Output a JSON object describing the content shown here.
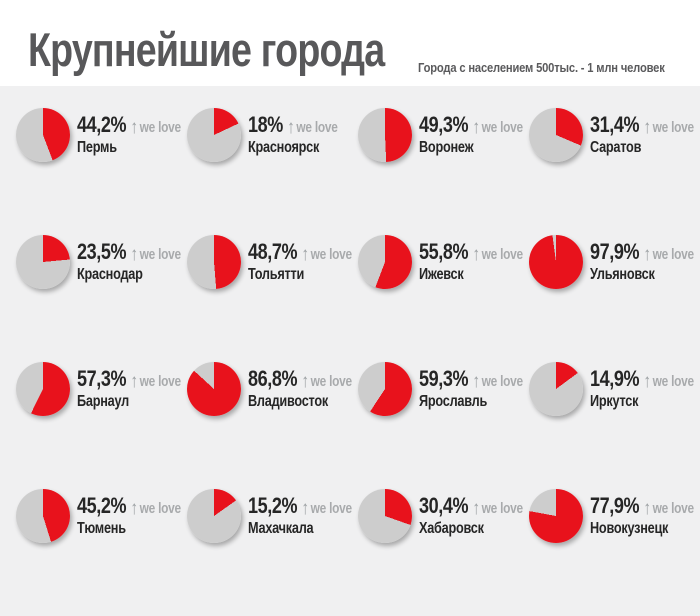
{
  "header": {
    "title": "Крупнейшие города",
    "subtitle": "Города с населением 500тыс. - 1 млн человек"
  },
  "colors": {
    "slice": "#e8121c",
    "remainder": "#cdcdcd",
    "background": "#f0f0f1",
    "header_background": "#ffffff",
    "title_text": "#58585a",
    "value_text": "#262626",
    "muted_text": "#a8aaac"
  },
  "chart_data": {
    "type": "pie",
    "unit": "%",
    "slice_color": "#e8121c",
    "remainder_color": "#cdcdcd",
    "start_angle_deg": 0,
    "direction": "clockwise",
    "annotation": {
      "arrow": "↑",
      "label": "we love"
    },
    "series": [
      {
        "city": "Пермь",
        "value": 44.2,
        "label": "44,2%"
      },
      {
        "city": "Красноярск",
        "value": 18,
        "label": "18%"
      },
      {
        "city": "Воронеж",
        "value": 49.3,
        "label": "49,3%"
      },
      {
        "city": "Саратов",
        "value": 31.4,
        "label": "31,4%"
      },
      {
        "city": "Краснодар",
        "value": 23.5,
        "label": "23,5%"
      },
      {
        "city": "Тольятти",
        "value": 48.7,
        "label": "48,7%"
      },
      {
        "city": "Ижевск",
        "value": 55.8,
        "label": "55,8%"
      },
      {
        "city": "Ульяновск",
        "value": 97.9,
        "label": "97,9%"
      },
      {
        "city": "Барнаул",
        "value": 57.3,
        "label": "57,3%"
      },
      {
        "city": "Владивосток",
        "value": 86.8,
        "label": "86,8%"
      },
      {
        "city": "Ярославль",
        "value": 59.3,
        "label": "59,3%"
      },
      {
        "city": "Иркутск",
        "value": 14.9,
        "label": "14,9%"
      },
      {
        "city": "Тюмень",
        "value": 45.2,
        "label": "45,2%"
      },
      {
        "city": "Махачкала",
        "value": 15.2,
        "label": "15,2%"
      },
      {
        "city": "Хабаровск",
        "value": 30.4,
        "label": "30,4%"
      },
      {
        "city": "Новокузнецк",
        "value": 77.9,
        "label": "77,9%"
      }
    ]
  }
}
